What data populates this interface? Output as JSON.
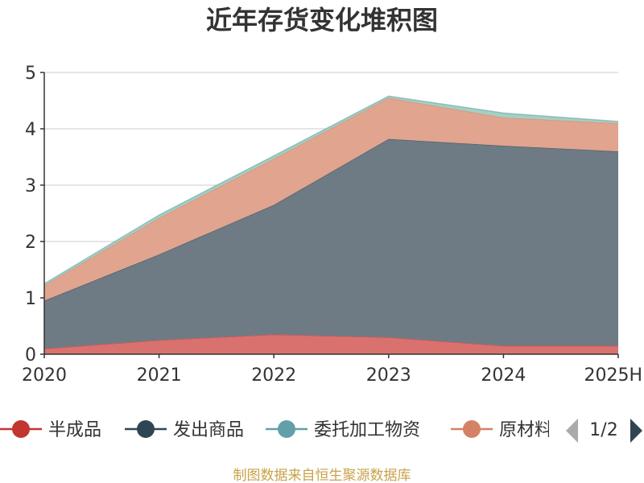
{
  "chart_data": {
    "type": "area",
    "stacked": true,
    "title": "近年存货变化堆积图",
    "ylabel": "",
    "xlabel": "",
    "ylim": [
      0,
      5
    ],
    "yticks": [
      0,
      1,
      2,
      3,
      4,
      5
    ],
    "grid": true,
    "categories": [
      "2020",
      "2021",
      "2022",
      "2023",
      "2024",
      "2025H"
    ],
    "series": [
      {
        "name": "半成品",
        "color": "#d9726f",
        "marker_color": "#c23531",
        "values": [
          0.1,
          0.25,
          0.35,
          0.3,
          0.15,
          0.15
        ]
      },
      {
        "name": "发出商品",
        "color": "#6e7b85",
        "marker_color": "#2f4554",
        "values": [
          0.85,
          1.52,
          2.3,
          3.52,
          3.55,
          3.45
        ]
      },
      {
        "name": "原材料",
        "color": "#e0a48f",
        "marker_color": "#d48265",
        "values": [
          0.27,
          0.65,
          0.82,
          0.73,
          0.5,
          0.5
        ]
      },
      {
        "name": "委托加工物资",
        "color": "#a3d0c2",
        "marker_color": "#61a0a8",
        "values": [
          0.03,
          0.05,
          0.05,
          0.03,
          0.08,
          0.03
        ]
      }
    ],
    "legend": {
      "position": "bottom",
      "visible_items": [
        "半成品",
        "发出商品",
        "委托加工物资",
        "原材料"
      ],
      "page": "1/2",
      "prev_icon": "triangle-left-icon",
      "next_icon": "triangle-right-icon"
    }
  },
  "source_note": "制图数据来自恒生聚源数据库"
}
